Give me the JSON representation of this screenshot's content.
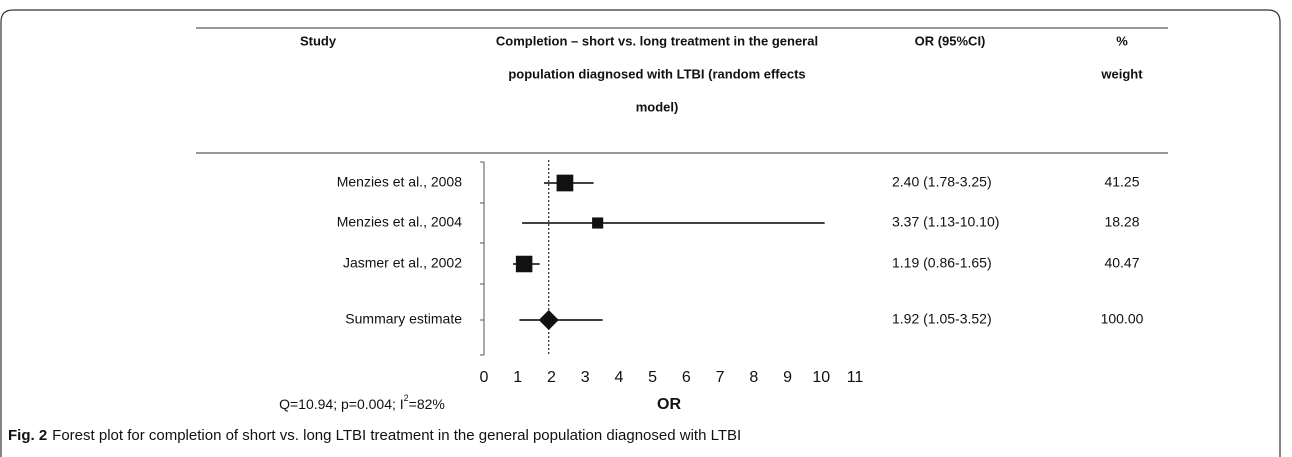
{
  "chart_data": {
    "type": "forest",
    "columns": {
      "study": "Study",
      "title": [
        "Completion – short vs. long treatment in the general",
        "population diagnosed with LTBI (random effects",
        "model)"
      ],
      "or_ci": "OR (95%CI)",
      "weight": [
        "%",
        "weight"
      ]
    },
    "categories": [
      "Menzies et al., 2008",
      "Menzies et al., 2004",
      "Jasmer et al., 2002"
    ],
    "values": [
      2.4,
      3.37,
      1.19
    ],
    "lower": [
      1.78,
      1.13,
      0.86
    ],
    "upper": [
      3.25,
      10.1,
      1.65
    ],
    "value_labels": [
      "2.40 (1.78-3.25)",
      "3.37 (1.13-10.10)",
      "1.19 (0.86-1.65)"
    ],
    "weights": [
      41.25,
      18.28,
      40.47
    ],
    "weight_labels": [
      "41.25",
      "18.28",
      "40.47"
    ],
    "summary": {
      "name": "Summary estimate",
      "value": 1.92,
      "lower": 1.05,
      "upper": 3.52,
      "value_label": "1.92 (1.05-3.52)",
      "weight": 100,
      "weight_label": "100.00"
    },
    "xlabel": "OR",
    "xlim": [
      0,
      11
    ],
    "xticks": [
      0,
      1,
      2,
      3,
      4,
      5,
      6,
      7,
      8,
      9,
      10,
      11
    ],
    "heterogeneity": [
      "Q=10.94; p=0.004; I",
      "2",
      "=82%"
    ],
    "caption": {
      "label": "Fig. 2",
      "text": "Forest plot for completion of short vs. long LTBI treatment in the general population diagnosed with LTBI"
    }
  }
}
